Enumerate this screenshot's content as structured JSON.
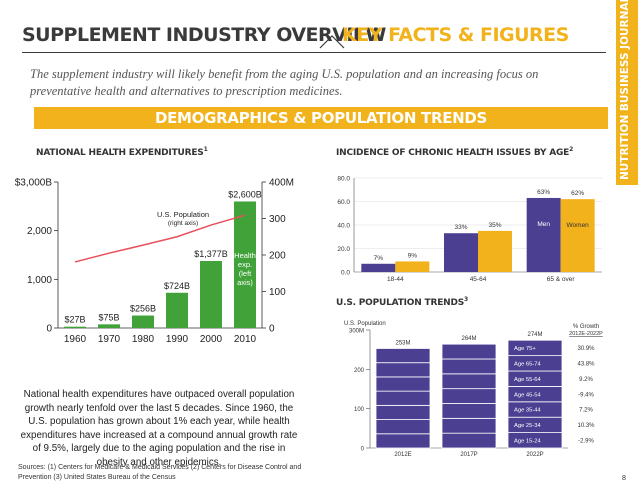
{
  "header": {
    "title": "SUPPLEMENT INDUSTRY OVERVIEW",
    "accent": "KEY FACTS & FIGURES",
    "subtitle": "The supplement industry will likely benefit from the aging U.S. population and an increasing focus on preventative health and alternatives to prescription medicines."
  },
  "banner": "DEMOGRAPHICS & POPULATION TRENDS",
  "side_tab": "NUTRITION BUSINESS JOURNAL",
  "colors": {
    "accent": "#f2b21b",
    "green": "#41a23a",
    "purple": "#4b3f91",
    "red_line": "#e8505b",
    "dark": "#3a3a3a"
  },
  "sections": {
    "health": "NATIONAL HEALTH EXPENDITURES",
    "health_sup": "1",
    "chronic": "INCIDENCE OF CHRONIC HEALTH ISSUES BY AGE",
    "chronic_sup": "2",
    "population": "U.S. POPULATION TRENDS",
    "population_sup": "3"
  },
  "note": "National health expenditures have outpaced overall population growth nearly tenfold over the last 5 decades. Since 1960, the U.S. population has grown about 1% each year, while health expenditures have increased at a compound annual growth rate of 9.5%, largely due to the aging population and the rise in obesity and other epidemics.",
  "sources": "Sources: (1) Centers for Medicare & Medicaid Services (2) Centers for Disease Control and Prevention (3) United States Bureau of the Census",
  "page_number": "8",
  "chart_data": [
    {
      "type": "bar",
      "categories": [
        "1960",
        "1970",
        "1980",
        "1990",
        "2000",
        "2010"
      ],
      "series": [
        {
          "name": "Health exp. (left axis)",
          "values": [
            27,
            75,
            256,
            724,
            1377,
            2600
          ],
          "labels": [
            "$27B",
            "$75B",
            "$256B",
            "$724B",
            "$1,377B",
            "$2,600B"
          ]
        },
        {
          "name": "U.S. Population (right axis)",
          "type": "line",
          "values": [
            181,
            205,
            227,
            250,
            282,
            309
          ]
        }
      ],
      "annotations": [
        "U.S. Population",
        "(right axis)",
        "Health",
        "exp.",
        "(left",
        "axis)"
      ],
      "left_ticks": [
        "0",
        "1,000",
        "2,000",
        "$3,000B"
      ],
      "right_ticks": [
        "0",
        "100",
        "200",
        "300",
        "400M"
      ],
      "ylim": [
        0,
        3000
      ],
      "y2lim": [
        0,
        400
      ]
    },
    {
      "type": "bar",
      "categories": [
        "18-44",
        "45-64",
        "65 & over"
      ],
      "series": [
        {
          "name": "Men",
          "values": [
            7,
            33,
            63
          ]
        },
        {
          "name": "Women",
          "values": [
            9,
            35,
            62
          ]
        }
      ],
      "y_ticks": [
        "0.0",
        "20.0",
        "40.0",
        "60.0",
        "80.0"
      ],
      "ylim": [
        0,
        80
      ]
    },
    {
      "type": "bar",
      "stacked": true,
      "ylabel": "U.S. Population",
      "categories": [
        "2012E",
        "2017P",
        "2022P"
      ],
      "totals": [
        "253M",
        "264M",
        "274M"
      ],
      "total_values": [
        253,
        264,
        274
      ],
      "segments": [
        "Age 15-24",
        "Age 25-34",
        "Age 35-44",
        "Age 45-54",
        "Age 55-64",
        "Age 65-74",
        "Age 75+"
      ],
      "growth_title": "% Growth",
      "growth_subtitle": "2012E-2022P",
      "growth": [
        "-2.9%",
        "10.3%",
        "7.2%",
        "-9.4%",
        "9.2%",
        "43.8%",
        "30.9%"
      ],
      "y_ticks": [
        "0",
        "100",
        "200",
        "300M"
      ],
      "ylim": [
        0,
        300
      ]
    }
  ]
}
